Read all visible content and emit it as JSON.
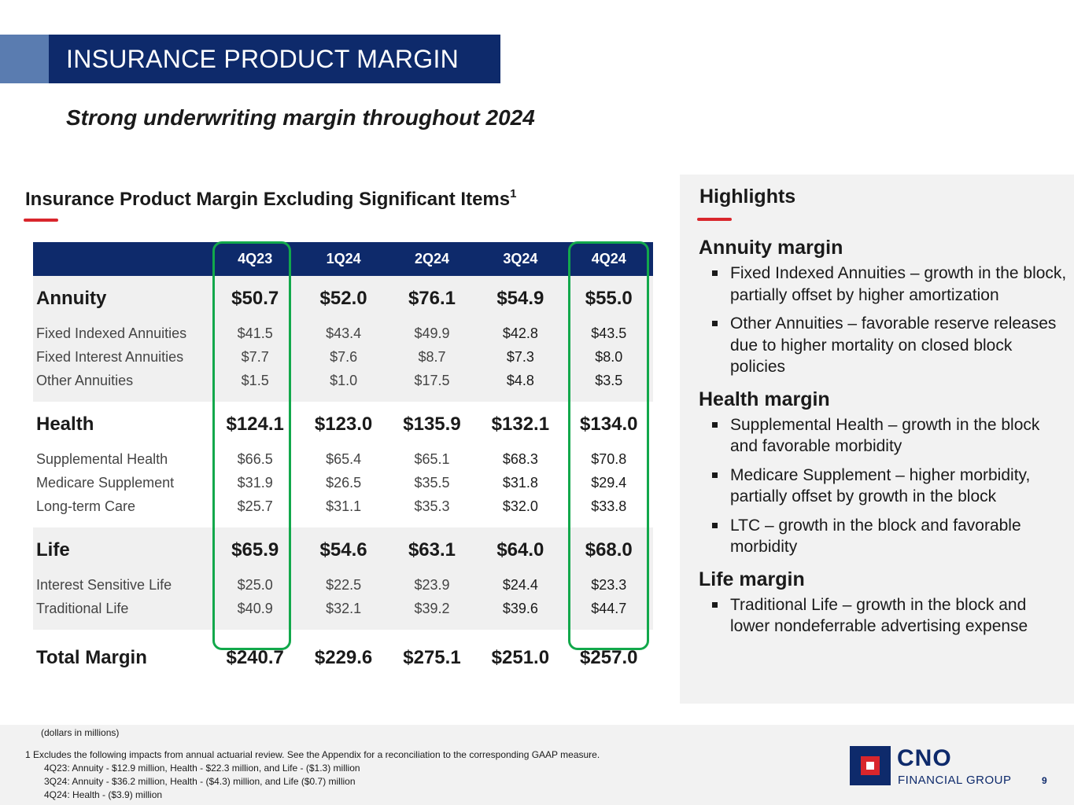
{
  "title": "INSURANCE PRODUCT MARGIN",
  "subtitle": "Strong underwriting margin throughout 2024",
  "table_section": {
    "title": "Insurance Product Margin Excluding Significant Items",
    "footnote_ref": "1"
  },
  "table": {
    "columns": [
      "4Q23",
      "1Q24",
      "2Q24",
      "3Q24",
      "4Q24"
    ],
    "groups": [
      {
        "label": "Annuity",
        "values": [
          "$50.7",
          "$52.0",
          "$76.1",
          "$54.9",
          "$55.0"
        ],
        "rows": [
          {
            "label": "Fixed Indexed Annuities",
            "values": [
              "$41.5",
              "$43.4",
              "$49.9",
              "$42.8",
              "$43.5"
            ]
          },
          {
            "label": "Fixed Interest Annuities",
            "values": [
              "$7.7",
              "$7.6",
              "$8.7",
              "$7.3",
              "$8.0"
            ]
          },
          {
            "label": "Other Annuities",
            "values": [
              "$1.5",
              "$1.0",
              "$17.5",
              "$4.8",
              "$3.5"
            ]
          }
        ]
      },
      {
        "label": "Health",
        "values": [
          "$124.1",
          "$123.0",
          "$135.9",
          "$132.1",
          "$134.0"
        ],
        "rows": [
          {
            "label": "Supplemental Health",
            "values": [
              "$66.5",
              "$65.4",
              "$65.1",
              "$68.3",
              "$70.8"
            ]
          },
          {
            "label": "Medicare Supplement",
            "values": [
              "$31.9",
              "$26.5",
              "$35.5",
              "$31.8",
              "$29.4"
            ]
          },
          {
            "label": "Long-term Care",
            "values": [
              "$25.7",
              "$31.1",
              "$35.3",
              "$32.0",
              "$33.8"
            ]
          }
        ]
      },
      {
        "label": "Life",
        "values": [
          "$65.9",
          "$54.6",
          "$63.1",
          "$64.0",
          "$68.0"
        ],
        "rows": [
          {
            "label": "Interest Sensitive Life",
            "values": [
              "$25.0",
              "$22.5",
              "$23.9",
              "$24.4",
              "$23.3"
            ]
          },
          {
            "label": "Traditional Life",
            "values": [
              "$40.9",
              "$32.1",
              "$39.2",
              "$39.6",
              "$44.7"
            ]
          }
        ]
      }
    ],
    "total": {
      "label": "Total Margin",
      "values": [
        "$240.7",
        "$229.6",
        "$275.1",
        "$251.0",
        "$257.0"
      ]
    }
  },
  "highlights": {
    "title": "Highlights",
    "sections": [
      {
        "heading": "Annuity margin",
        "bullets": [
          "Fixed Indexed Annuities – growth in the block, partially offset by higher amortization",
          "Other Annuities – favorable reserve releases due to higher mortality on closed block policies"
        ]
      },
      {
        "heading": "Health margin",
        "bullets": [
          "Supplemental Health – growth in the block and favorable morbidity",
          "Medicare Supplement – higher morbidity, partially offset by growth in the block",
          "LTC – growth in the block and favorable morbidity"
        ]
      },
      {
        "heading": "Life margin",
        "bullets": [
          "Traditional Life – growth in the block and lower nondeferrable advertising expense"
        ]
      }
    ]
  },
  "footer": {
    "units": "(dollars in millions)",
    "note": "1 Excludes the following impacts from annual actuarial review. See the Appendix for a reconciliation to the corresponding GAAP measure.",
    "lines": [
      "4Q23:  Annuity - $12.9 million, Health - $22.3 million, and Life - ($1.3) million",
      "3Q24:  Annuity - $36.2 million, Health - ($4.3) million, and Life ($0.7) million",
      "4Q24:  Health - ($3.9) million"
    ]
  },
  "logo": {
    "name": "CNO",
    "sub": "FINANCIAL GROUP"
  },
  "page_number": "9",
  "colors": {
    "navy": "#0e2a6b",
    "accent_blue": "#5a7cb0",
    "red": "#d9262c",
    "green": "#12a84b",
    "panel_gray": "#f2f2f2"
  }
}
